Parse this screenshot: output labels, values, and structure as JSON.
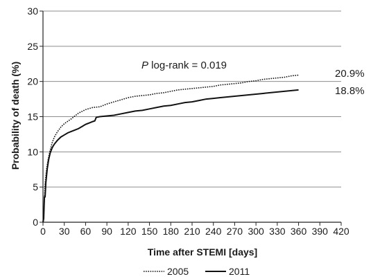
{
  "chart_data": {
    "type": "line",
    "xlabel": "Time after STEMI [days]",
    "ylabel": "Probability of death (%)",
    "xlim": [
      0,
      420
    ],
    "ylim": [
      0,
      30
    ],
    "xticks": [
      0,
      30,
      60,
      90,
      120,
      150,
      180,
      210,
      240,
      270,
      300,
      330,
      360,
      390,
      420
    ],
    "yticks": [
      0,
      5,
      10,
      15,
      20,
      25,
      30
    ],
    "grid": "horizontal",
    "legend_position": "bottom",
    "annotation": {
      "italic": "P",
      "text": " log-rank = 0.019"
    },
    "series": [
      {
        "name": "2005",
        "style": "dotted",
        "end_label": "20.9%",
        "points": [
          [
            0,
            0
          ],
          [
            1,
            0.5
          ],
          [
            2,
            3.5
          ],
          [
            3,
            5.5
          ],
          [
            5,
            7.5
          ],
          [
            7,
            8.8
          ],
          [
            10,
            10.2
          ],
          [
            13,
            11.3
          ],
          [
            16,
            12.1
          ],
          [
            20,
            12.8
          ],
          [
            25,
            13.5
          ],
          [
            30,
            14
          ],
          [
            40,
            14.7
          ],
          [
            50,
            15.5
          ],
          [
            60,
            16
          ],
          [
            70,
            16.3
          ],
          [
            80,
            16.4
          ],
          [
            90,
            16.8
          ],
          [
            100,
            17.1
          ],
          [
            110,
            17.4
          ],
          [
            120,
            17.7
          ],
          [
            130,
            17.9
          ],
          [
            140,
            18
          ],
          [
            150,
            18.1
          ],
          [
            160,
            18.3
          ],
          [
            170,
            18.4
          ],
          [
            180,
            18.6
          ],
          [
            190,
            18.8
          ],
          [
            200,
            18.9
          ],
          [
            210,
            19
          ],
          [
            220,
            19.1
          ],
          [
            230,
            19.2
          ],
          [
            240,
            19.3
          ],
          [
            250,
            19.5
          ],
          [
            260,
            19.6
          ],
          [
            270,
            19.7
          ],
          [
            280,
            19.8
          ],
          [
            290,
            20
          ],
          [
            300,
            20.1
          ],
          [
            310,
            20.3
          ],
          [
            320,
            20.4
          ],
          [
            330,
            20.5
          ],
          [
            340,
            20.6
          ],
          [
            350,
            20.8
          ],
          [
            360,
            20.9
          ]
        ]
      },
      {
        "name": "2011",
        "style": "solid",
        "end_label": "18.8%",
        "points": [
          [
            0,
            0
          ],
          [
            1,
            0.5
          ],
          [
            2,
            3.6
          ],
          [
            3,
            3.6
          ],
          [
            4,
            5.6
          ],
          [
            6,
            7.6
          ],
          [
            8,
            8.9
          ],
          [
            10,
            9.8
          ],
          [
            13,
            10.6
          ],
          [
            16,
            11.1
          ],
          [
            20,
            11.6
          ],
          [
            25,
            12.1
          ],
          [
            30,
            12.4
          ],
          [
            35,
            12.7
          ],
          [
            40,
            12.9
          ],
          [
            45,
            13.1
          ],
          [
            50,
            13.3
          ],
          [
            55,
            13.6
          ],
          [
            60,
            13.9
          ],
          [
            65,
            14.1
          ],
          [
            70,
            14.3
          ],
          [
            73,
            14.4
          ],
          [
            75,
            14.9
          ],
          [
            80,
            15
          ],
          [
            90,
            15.1
          ],
          [
            100,
            15.2
          ],
          [
            110,
            15.4
          ],
          [
            120,
            15.6
          ],
          [
            130,
            15.8
          ],
          [
            140,
            15.9
          ],
          [
            150,
            16.1
          ],
          [
            160,
            16.3
          ],
          [
            170,
            16.5
          ],
          [
            180,
            16.6
          ],
          [
            190,
            16.8
          ],
          [
            200,
            17
          ],
          [
            210,
            17.1
          ],
          [
            220,
            17.3
          ],
          [
            230,
            17.5
          ],
          [
            240,
            17.6
          ],
          [
            250,
            17.7
          ],
          [
            260,
            17.8
          ],
          [
            270,
            17.9
          ],
          [
            280,
            18
          ],
          [
            290,
            18.1
          ],
          [
            300,
            18.2
          ],
          [
            310,
            18.3
          ],
          [
            320,
            18.4
          ],
          [
            330,
            18.5
          ],
          [
            340,
            18.6
          ],
          [
            350,
            18.7
          ],
          [
            360,
            18.8
          ]
        ]
      }
    ]
  }
}
